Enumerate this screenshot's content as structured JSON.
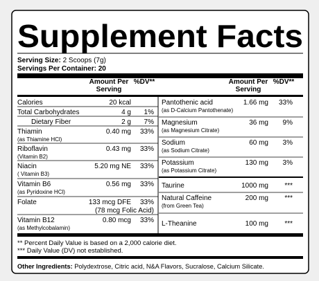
{
  "title": "Supplement Facts",
  "serving_size": {
    "label": "Serving Size:",
    "value": "2 Scoops (7g)"
  },
  "servings_per_container": {
    "label": "Servings Per Container:",
    "value": "20"
  },
  "columns": {
    "left": {
      "amount": [
        "Amount Per",
        "Serving"
      ],
      "dv": "%DV**"
    },
    "right": {
      "amount": [
        "Amount Per",
        "Serving"
      ],
      "dv": "%DV**"
    }
  },
  "left_rows": [
    {
      "name": "Calories",
      "amount": "20 kcal"
    },
    {
      "name": "Total Carbohydrates",
      "amount": "4 g",
      "dv": "1%"
    },
    {
      "name": "Dietary Fiber",
      "amount": "2 g",
      "dv": "7%"
    },
    {
      "name": "Thiamin",
      "sub": "(as Thiamine HCl)",
      "amount": "0.40 mg",
      "dv": "33%"
    },
    {
      "name": "Riboflavin",
      "sub": "(Vitamin B2)",
      "amount": "0.43 mg",
      "dv": "33%"
    },
    {
      "name": "Niacin",
      "sub": "( Vitamin B3)",
      "amount": "5.20 mg NE",
      "dv": "33%"
    },
    {
      "name": "Vitamin B6",
      "sub": "(as Pyridoxine HCl)",
      "amount": "0.56 mg",
      "dv": "33%"
    },
    {
      "name": "Folate",
      "amount": "133 mcg DFE",
      "amount_note": "(78 mcg Folic Acid)",
      "dv": "33%"
    },
    {
      "name": "Vitamin B12",
      "sub": "(as Methylcobalamin)",
      "amount": "0.80 mcg",
      "dv": "33%"
    }
  ],
  "right_rows": [
    {
      "name": "Pantothenic acid",
      "sub": "(as D-Calcium Pantothenate)",
      "amount": "1.66 mg",
      "dv": "33%"
    },
    {
      "name": "Magnesium",
      "sub": "(as Magnesium Citrate)",
      "amount": "36 mg",
      "dv": "9%"
    },
    {
      "name": "Sodium",
      "sub": "(as Sodium Citrate)",
      "amount": "60 mg",
      "dv": "3%"
    },
    {
      "name": "Potassium",
      "sub": "(as Potassium Citrate)",
      "amount": "130 mg",
      "dv": "3%"
    },
    {
      "name": "Taurine",
      "amount": "1000 mg",
      "dv": "***"
    },
    {
      "name": "Natural Caffeine",
      "sub": "(from Green Tea)",
      "amount": "200 mg",
      "dv": "***"
    },
    {
      "name": "L-Theanine",
      "amount": "100 mg",
      "dv": "***"
    }
  ],
  "footnotes": [
    "** Percent Daily Value is based on a 2,000 calorie diet.",
    "*** Daily Value (DV) not established."
  ],
  "other_ingredients": {
    "label": "Other Ingredients:",
    "value": "Polydextrose, Citric acid, N&A Flavors, Sucralose, Calcium Silicate."
  }
}
